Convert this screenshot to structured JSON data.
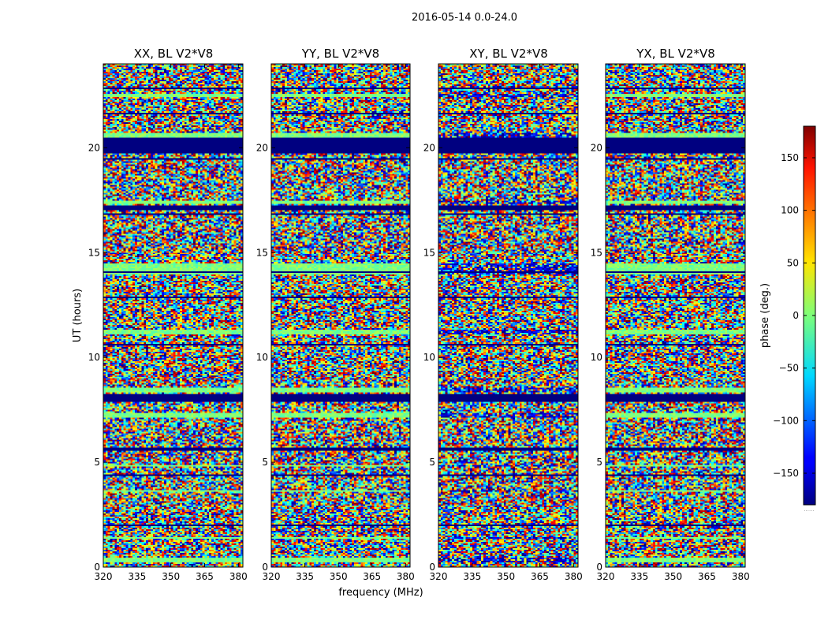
{
  "chart_data": {
    "type": "heatmap",
    "suptitle": "2016-05-14 0.0-24.0",
    "xlabel": "frequency (MHz)",
    "ylabel": "UT (hours)",
    "xlim": [
      320,
      382
    ],
    "ylim": [
      0,
      24
    ],
    "xticks": [
      "320",
      "335",
      "350",
      "365",
      "380"
    ],
    "xtick_values": [
      320,
      335,
      350,
      365,
      380
    ],
    "yticks": [
      "0",
      "5",
      "10",
      "15",
      "20"
    ],
    "ytick_values": [
      0,
      5,
      10,
      15,
      20
    ],
    "colormap": "jet",
    "colorbar": {
      "label": "phase (deg.)",
      "range": [
        -180,
        180
      ],
      "ticks": [
        "150",
        "100",
        "50",
        "0",
        "−50",
        "−100",
        "−150"
      ],
      "tick_values": [
        150,
        100,
        50,
        0,
        -50,
        -100,
        -150
      ],
      "footer": "......"
    },
    "panels": [
      {
        "title": "XX, BL V2*V8",
        "pol": "XX"
      },
      {
        "title": "YY, BL V2*V8",
        "pol": "YY"
      },
      {
        "title": "XY, BL V2*V8",
        "pol": "XY"
      },
      {
        "title": "YX, BL V2*V8",
        "pol": "YX"
      }
    ],
    "flagged_ut_bands": [
      [
        0.05,
        0.08
      ],
      [
        1.18,
        1.22
      ],
      [
        1.95,
        2.0
      ],
      [
        3.2,
        3.25
      ],
      [
        4.35,
        4.4
      ],
      [
        5.55,
        5.72
      ],
      [
        6.05,
        6.1
      ],
      [
        7.55,
        7.6
      ],
      [
        7.9,
        8.25
      ],
      [
        9.5,
        9.55
      ],
      [
        10.6,
        10.65
      ],
      [
        11.75,
        11.8
      ],
      [
        12.85,
        12.9
      ],
      [
        14.05,
        14.1
      ],
      [
        16.8,
        16.85
      ],
      [
        17.05,
        17.25
      ],
      [
        18.2,
        18.25
      ],
      [
        19.4,
        19.5
      ],
      [
        19.75,
        20.45
      ],
      [
        21.6,
        21.65
      ],
      [
        22.8,
        22.85
      ]
    ],
    "coherent_ut_bands": [
      [
        0.25,
        0.45
      ],
      [
        1.35,
        1.45
      ],
      [
        3.6,
        3.7
      ],
      [
        4.8,
        4.9
      ],
      [
        7.15,
        7.35
      ],
      [
        8.35,
        8.55
      ],
      [
        11.1,
        11.3
      ],
      [
        13.95,
        14.5
      ],
      [
        17.3,
        17.5
      ],
      [
        20.45,
        20.7
      ],
      [
        22.4,
        22.6
      ]
    ]
  }
}
